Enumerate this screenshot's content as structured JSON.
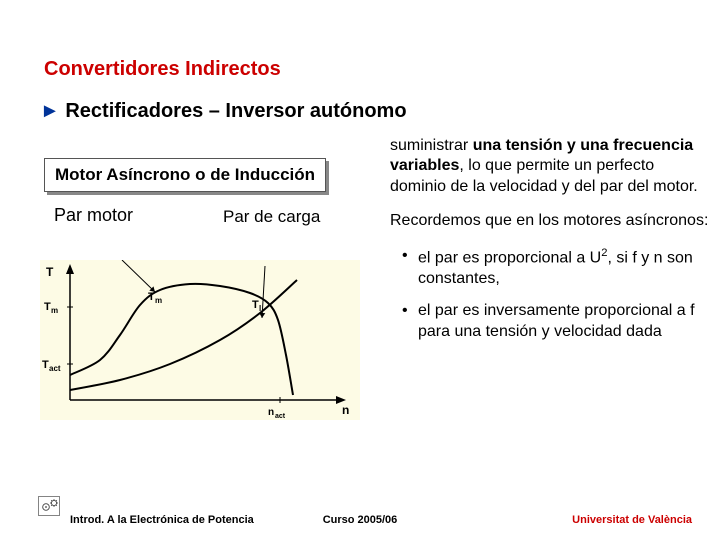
{
  "title": "Convertidores Indirectos",
  "subtitle_marker": "►",
  "subtitle": "Rectificadores – Inversor autónomo",
  "motor_box": "Motor Asíncrono o de Inducción",
  "label_par_motor": "Par motor",
  "label_par_carga": "Par de carga",
  "paragraphs": {
    "p1_prefix": "suministrar ",
    "p1_bold": "una tensión y una frecuencia variables",
    "p1_suffix": ", lo que permite un perfecto dominio de la velocidad y del par del motor.",
    "p2": "Recordemos que en los motores asíncronos:",
    "b1_prefix": "el par es proporcional a U",
    "b1_sup": "2",
    "b1_suffix": ", si f y n son constantes,",
    "b2": "el par es inversamente proporcional a f para una tensión y velocidad dada"
  },
  "chart": {
    "type": "line",
    "background_color": "#fdfbe5",
    "axis_color": "#000000",
    "line_color": "#000000",
    "line_width": 2,
    "xlabel": "n",
    "ylabel": "T",
    "tick_labels_y": [
      "Tact",
      "Tm"
    ],
    "x_markers": [
      "nact"
    ],
    "label_Tm": "Tm",
    "label_Tl": "Tl",
    "label_Tact": "Tact",
    "label_nact": "nact",
    "label_fontsize": 10,
    "motor_curve": [
      [
        30,
        115
      ],
      [
        60,
        100
      ],
      [
        80,
        75
      ],
      [
        100,
        45
      ],
      [
        120,
        30
      ],
      [
        150,
        24
      ],
      [
        180,
        26
      ],
      [
        210,
        33
      ],
      [
        228,
        43
      ],
      [
        238,
        60
      ],
      [
        246,
        95
      ],
      [
        253,
        135
      ]
    ],
    "load_curve": [
      [
        30,
        130
      ],
      [
        80,
        120
      ],
      [
        130,
        104
      ],
      [
        180,
        80
      ],
      [
        220,
        53
      ],
      [
        257,
        20
      ]
    ],
    "arrow_motor_from": [
      82,
      0
    ],
    "arrow_motor_to": [
      115,
      32
    ],
    "arrow_carga_from": [
      225,
      6
    ],
    "arrow_carga_to": [
      222,
      58
    ]
  },
  "footer": {
    "left": "Introd. A la Electrónica de Potencia",
    "center": "Curso 2005/06",
    "right": "Universitat de València"
  },
  "colors": {
    "title": "#cc0000",
    "subtitle_marker": "#003399",
    "footer_right": "#cc0000"
  }
}
